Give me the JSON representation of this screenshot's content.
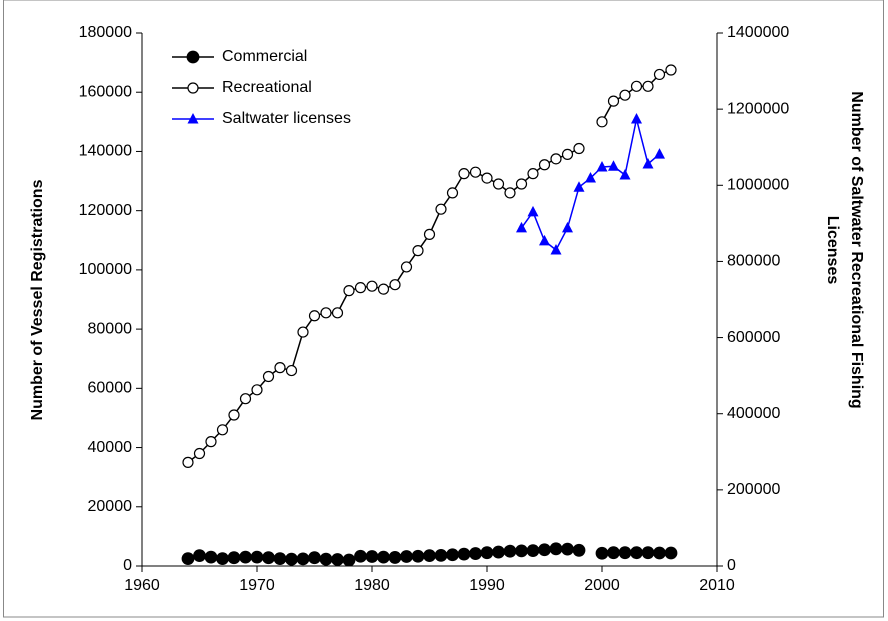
{
  "chart_data": {
    "type": "line",
    "y_label": "Number of Vessel Registrations",
    "y2_label": [
      "Number of Saltwater Recreational Fishing",
      "Licenses"
    ],
    "x": [
      1964,
      1965,
      1966,
      1967,
      1968,
      1969,
      1970,
      1971,
      1972,
      1973,
      1974,
      1975,
      1976,
      1977,
      1978,
      1979,
      1980,
      1981,
      1982,
      1983,
      1984,
      1985,
      1986,
      1987,
      1988,
      1989,
      1990,
      1991,
      1992,
      1993,
      1994,
      1995,
      1996,
      1997,
      1998,
      1999,
      2000,
      2001,
      2002,
      2003,
      2004,
      2005,
      2006
    ],
    "series": [
      {
        "name": "Commercial",
        "color": "#000000",
        "marker": "circle-filled",
        "values": [
          2500,
          3500,
          3000,
          2500,
          2800,
          3000,
          3000,
          2800,
          2500,
          2300,
          2400,
          2800,
          2300,
          2200,
          2000,
          3300,
          3200,
          3000,
          2900,
          3200,
          3300,
          3500,
          3600,
          3800,
          4000,
          4200,
          4500,
          4700,
          5000,
          5100,
          5200,
          5500,
          5800,
          5700,
          5300,
          null,
          4300,
          4500,
          4500,
          4500,
          4500,
          4400,
          4400
        ]
      },
      {
        "name": "Recreational",
        "color": "#000000",
        "marker": "circle-open",
        "values": [
          35000,
          38000,
          42000,
          46000,
          51000,
          56500,
          59500,
          64000,
          67000,
          66000,
          79000,
          84500,
          85500,
          85500,
          93000,
          94000,
          94500,
          93500,
          95000,
          101000,
          106500,
          112000,
          120500,
          126000,
          132500,
          133000,
          131000,
          129000,
          126000,
          129000,
          132500,
          135500,
          137500,
          139000,
          141000,
          null,
          150000,
          157000,
          159000,
          162000,
          162000,
          166000,
          167500
        ]
      },
      {
        "name": "Saltwater licenses",
        "color": "#0000ff",
        "marker": "triangle",
        "axis": "y2",
        "values": [
          null,
          null,
          null,
          null,
          null,
          null,
          null,
          null,
          null,
          null,
          null,
          null,
          null,
          null,
          null,
          null,
          null,
          null,
          null,
          null,
          null,
          null,
          null,
          null,
          null,
          null,
          null,
          null,
          null,
          888000,
          930000,
          854000,
          830000,
          888000,
          995000,
          1019000,
          1048000,
          1050000,
          1027000,
          1174000,
          1056000,
          1082000,
          null
        ]
      }
    ],
    "xlim": [
      1960,
      2010
    ],
    "xticks": [
      1960,
      1970,
      1980,
      1990,
      2000,
      2010
    ],
    "ylim": [
      0,
      180000
    ],
    "yticks": [
      0,
      20000,
      40000,
      60000,
      80000,
      100000,
      120000,
      140000,
      160000,
      180000
    ],
    "y2lim": [
      0,
      1400000
    ],
    "y2ticks": [
      0,
      200000,
      400000,
      600000,
      800000,
      1000000,
      1200000,
      1400000
    ],
    "grid": false,
    "legend": "top-left"
  }
}
